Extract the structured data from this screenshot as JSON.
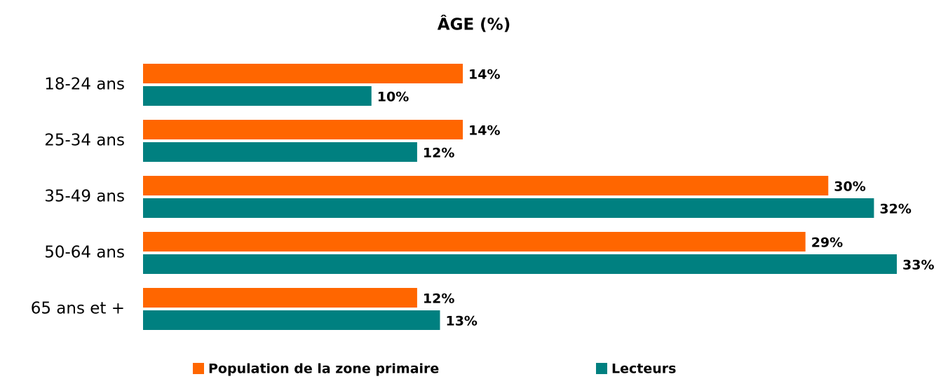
{
  "chart_data": {
    "type": "hbar",
    "title": "ÂGE (%)",
    "categories": [
      "18-24 ans",
      "25-34 ans",
      "35-49 ans",
      "50-64 ans",
      "65 ans et +"
    ],
    "series": [
      {
        "name": "Population de la zone primaire",
        "color": "#ff6600",
        "values": [
          14,
          14,
          30,
          29,
          12
        ],
        "value_labels": [
          "14%",
          "14%",
          "30%",
          "29%",
          "12%"
        ]
      },
      {
        "name": "Lecteurs",
        "color": "#008080",
        "values": [
          10,
          12,
          32,
          33,
          13
        ],
        "value_labels": [
          "10%",
          "12%",
          "32%",
          "33%",
          "13%"
        ]
      }
    ],
    "legend": "bottom"
  }
}
